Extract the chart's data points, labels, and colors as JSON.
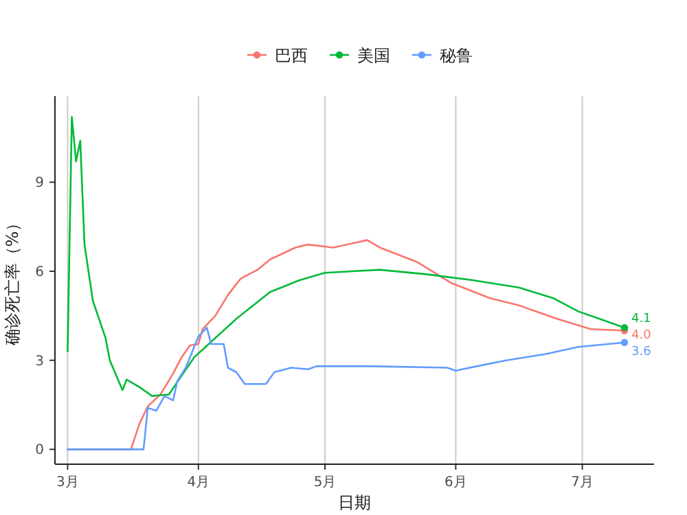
{
  "chart_data": {
    "type": "line",
    "xlabel": "日期",
    "ylabel": "确诊死亡率（%）",
    "legend": "top",
    "grid": "x",
    "xlim": [
      "--02-26",
      "--07-18"
    ],
    "ylim": [
      -0.5,
      11.9
    ],
    "yticks": [
      0,
      3,
      6,
      9
    ],
    "xticks": [
      {
        "value": "--03-01",
        "label": "3月"
      },
      {
        "value": "--04-01",
        "label": "4月"
      },
      {
        "value": "--05-01",
        "label": "5月"
      },
      {
        "value": "--06-01",
        "label": "6月"
      },
      {
        "value": "--07-01",
        "label": "7月"
      }
    ],
    "series": [
      {
        "name": "巴西",
        "color": "#f8766d",
        "x": [
          "--03-01",
          "--03-16",
          "--03-18",
          "--03-20",
          "--03-23",
          "--03-26",
          "--03-28",
          "--03-30",
          "--04-01",
          "--04-02",
          "--04-05",
          "--04-08",
          "--04-11",
          "--04-15",
          "--04-18",
          "--04-24",
          "--04-27",
          "--05-03",
          "--05-11",
          "--05-14",
          "--05-23",
          "--05-31",
          "--06-09",
          "--06-16",
          "--06-25",
          "--07-03",
          "--07-11"
        ],
        "values": [
          0,
          0,
          0.85,
          1.45,
          1.85,
          2.55,
          3.1,
          3.5,
          3.55,
          4.05,
          4.5,
          5.2,
          5.75,
          6.05,
          6.4,
          6.8,
          6.9,
          6.8,
          7.05,
          6.8,
          6.3,
          5.6,
          5.1,
          4.85,
          4.4,
          4.05,
          4.0
        ],
        "value_labels": [
          null,
          null,
          null,
          null,
          null,
          null,
          null,
          null,
          null,
          null,
          null,
          null,
          null,
          null,
          null,
          null,
          null,
          null,
          null,
          null,
          null,
          null,
          null,
          null,
          null,
          null,
          "4.0"
        ]
      },
      {
        "name": "美国",
        "color": "#00ba38",
        "x": [
          "--03-01",
          "--03-02",
          "--03-03",
          "--03-04",
          "--03-05",
          "--03-07",
          "--03-10",
          "--03-11",
          "--03-14",
          "--03-15",
          "--03-18",
          "--03-21",
          "--03-25",
          "--03-31",
          "--04-10",
          "--04-18",
          "--04-25",
          "--05-01",
          "--05-14",
          "--05-25",
          "--06-05",
          "--06-16",
          "--06-24",
          "--06-30",
          "--07-07",
          "--07-11"
        ],
        "values": [
          3.3,
          11.2,
          9.7,
          10.4,
          6.9,
          5.0,
          3.75,
          3.0,
          2.0,
          2.35,
          2.1,
          1.8,
          1.85,
          3.1,
          4.4,
          5.3,
          5.7,
          5.95,
          6.05,
          5.9,
          5.7,
          5.45,
          5.1,
          4.65,
          4.3,
          4.1
        ],
        "value_labels": [
          null,
          null,
          null,
          null,
          null,
          null,
          null,
          null,
          null,
          null,
          null,
          null,
          null,
          null,
          null,
          null,
          null,
          null,
          null,
          null,
          null,
          null,
          null,
          null,
          null,
          "4.1"
        ]
      },
      {
        "name": "秘鲁",
        "color": "#619cff",
        "x": [
          "--03-01",
          "--03-19",
          "--03-20",
          "--03-22",
          "--03-24",
          "--03-26",
          "--03-27",
          "--03-29",
          "--04-01",
          "--04-03",
          "--04-04",
          "--04-07",
          "--04-08",
          "--04-10",
          "--04-12",
          "--04-17",
          "--04-19",
          "--04-23",
          "--04-27",
          "--04-29",
          "--05-12",
          "--05-30",
          "--06-01",
          "--06-06",
          "--06-13",
          "--06-22",
          "--06-30",
          "--07-11"
        ],
        "values": [
          0,
          0,
          1.4,
          1.3,
          1.8,
          1.65,
          2.3,
          2.75,
          3.8,
          4.1,
          3.55,
          3.55,
          2.75,
          2.6,
          2.2,
          2.2,
          2.6,
          2.75,
          2.7,
          2.8,
          2.8,
          2.75,
          2.65,
          2.8,
          3.0,
          3.2,
          3.45,
          3.6
        ],
        "value_labels": [
          null,
          null,
          null,
          null,
          null,
          null,
          null,
          null,
          null,
          null,
          null,
          null,
          null,
          null,
          null,
          null,
          null,
          null,
          null,
          null,
          null,
          null,
          null,
          null,
          null,
          null,
          null,
          "3.6"
        ]
      }
    ]
  }
}
